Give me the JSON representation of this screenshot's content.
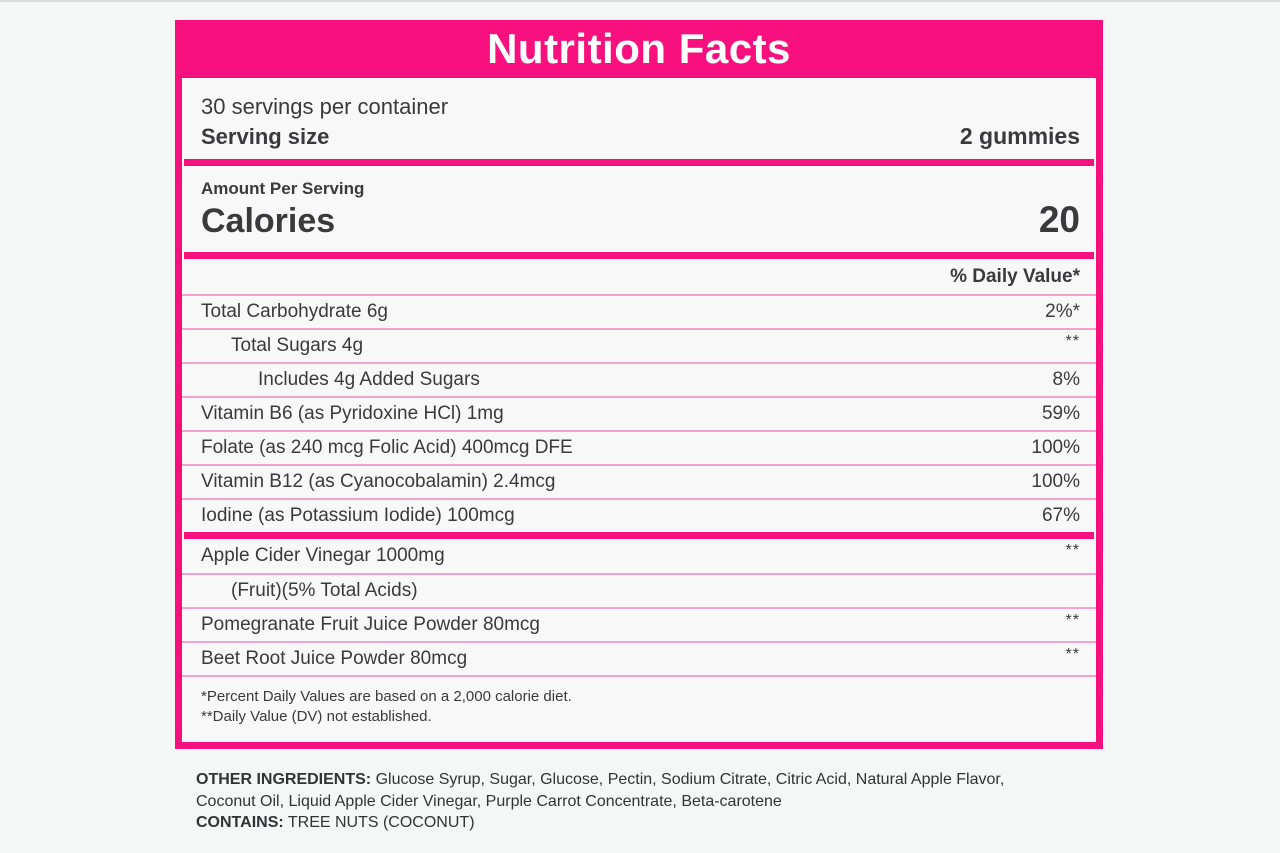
{
  "label": {
    "title": "Nutrition Facts",
    "servings_per_container": "30 servings per container",
    "serving_size_label": "Serving size",
    "serving_size_value": "2 gummies",
    "amount_per_serving": "Amount Per Serving",
    "calories_label": "Calories",
    "calories_value": "20",
    "daily_value_header": "% Daily Value*",
    "rows": [
      {
        "name": "Total Carbohydrate 6g",
        "value": "2%*"
      },
      {
        "name": "Total Sugars 4g",
        "value": "**"
      },
      {
        "name": "Includes 4g Added Sugars",
        "value": "8%"
      },
      {
        "name": "Vitamin B6 (as Pyridoxine HCl) 1mg",
        "value": "59%"
      },
      {
        "name": "Folate (as 240 mcg Folic Acid) 400mcg DFE",
        "value": "100%"
      },
      {
        "name": "Vitamin B12 (as Cyanocobalamin) 2.4mcg",
        "value": "100%"
      },
      {
        "name": "Iodine (as Potassium Iodide) 100mcg",
        "value": "67%"
      },
      {
        "name": "Apple Cider Vinegar 1000mg",
        "value": "**"
      },
      {
        "name": "(Fruit)(5% Total Acids)",
        "value": ""
      },
      {
        "name": "Pomegranate Fruit Juice Powder 80mcg",
        "value": "**"
      },
      {
        "name": "Beet Root Juice Powder 80mcg",
        "value": "**"
      }
    ],
    "footnotes": {
      "line1": "*Percent Daily Values are based on a 2,000 calorie diet.",
      "line2": "**Daily Value (DV) not established."
    }
  },
  "below": {
    "other_ingredients_label": "OTHER INGREDIENTS:",
    "other_ingredients_text": " Glucose Syrup, Sugar, Glucose, Pectin, Sodium Citrate, Citric Acid, Natural Apple Flavor, Coconut Oil, Liquid Apple Cider Vinegar, Purple Carrot Concentrate, Beta-carotene",
    "contains_label": "CONTAINS:",
    "contains_text": " TREE NUTS (COCONUT)"
  },
  "colors": {
    "accent_pink": "#f9107f",
    "divider_pink": "#f5a1ce",
    "text": "#3a3a3c"
  }
}
